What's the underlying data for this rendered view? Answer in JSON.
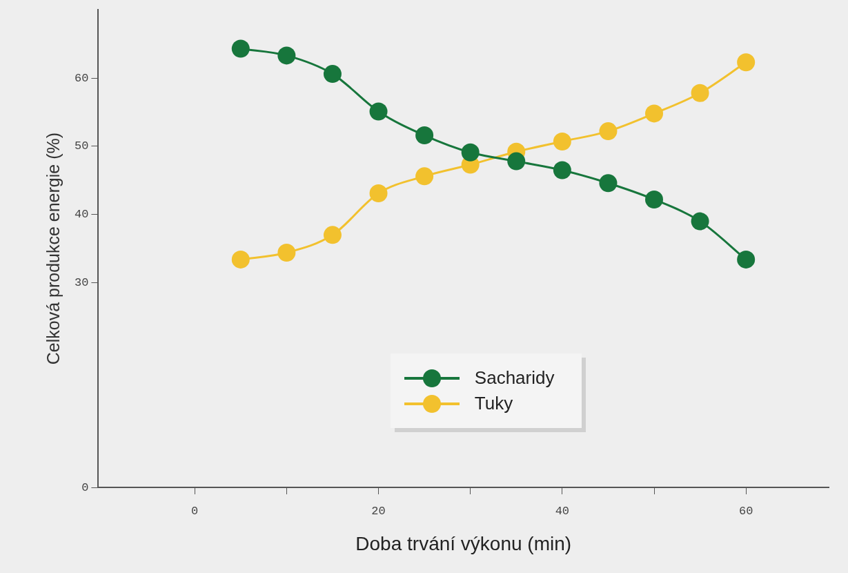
{
  "chart_data": {
    "type": "line",
    "xlabel": "Doba trvání výkonu (min)",
    "ylabel": "Celková produkce energie (%)",
    "x": [
      5,
      10,
      15,
      20,
      25,
      30,
      35,
      40,
      45,
      50,
      55,
      60
    ],
    "series": [
      {
        "name": "Sacharidy",
        "color": "#17763c",
        "values": [
          64.3,
          63.3,
          60.6,
          55.1,
          51.6,
          49.1,
          47.8,
          46.5,
          44.6,
          42.2,
          39.0,
          33.4
        ]
      },
      {
        "name": "Tuky",
        "color": "#f2c12e",
        "values": [
          33.4,
          34.4,
          37.0,
          43.1,
          45.6,
          47.3,
          49.2,
          50.7,
          52.2,
          54.8,
          57.8,
          62.3
        ]
      }
    ],
    "xlim": [
      -10.5,
      69
    ],
    "xticks": [
      0,
      {
        "value": 10,
        "label": null
      },
      20,
      {
        "value": 30,
        "label": null
      },
      40,
      {
        "value": 50,
        "label": null
      },
      60
    ],
    "ylim": [
      0,
      70
    ],
    "yticks": [
      0,
      30,
      40,
      50,
      60
    ],
    "grid": false,
    "legend": "bottom right",
    "marker": "circle",
    "line_style": "solid"
  }
}
